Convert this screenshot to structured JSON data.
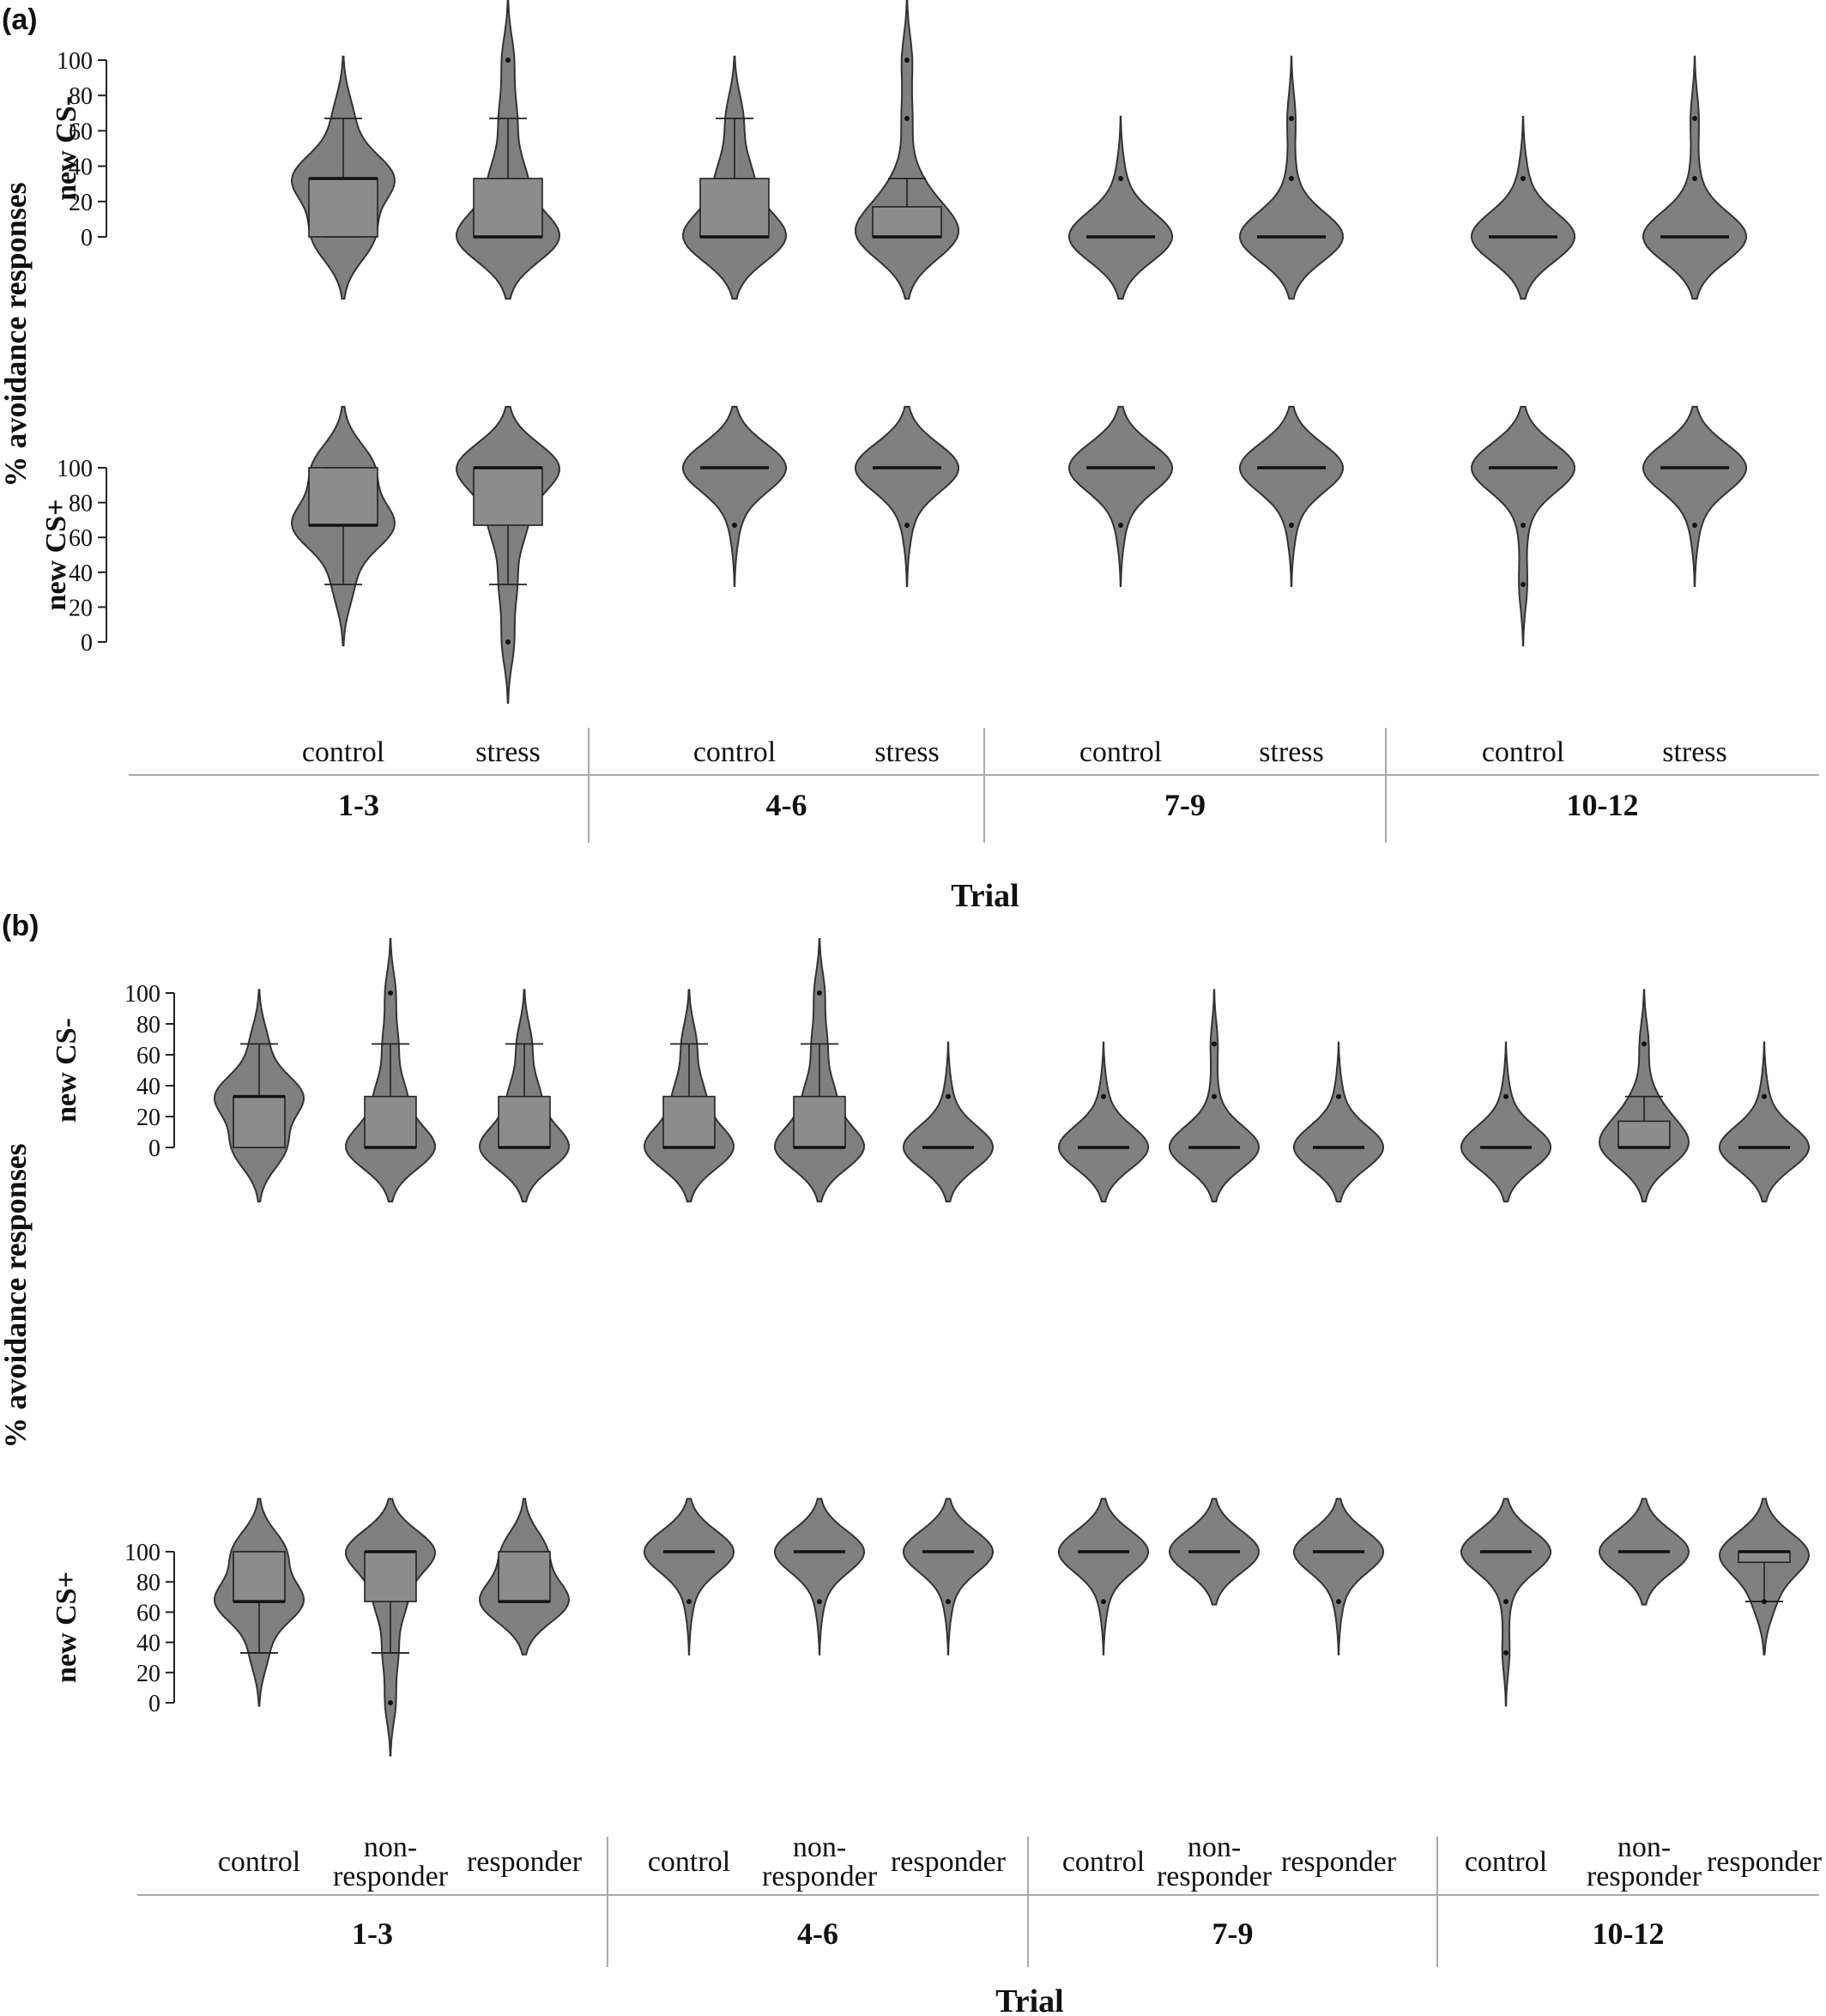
{
  "chart_data": [
    {
      "panel": "(a)",
      "type": "violin",
      "ylabel": "% avoidance responses",
      "xlabel": "Trial",
      "trial_blocks": [
        "1-3",
        "4-6",
        "7-9",
        "10-12"
      ],
      "groups": [
        "control",
        "stress"
      ],
      "yticks": [
        "100",
        "80",
        "60",
        "40",
        "20",
        "0"
      ],
      "ylim": [
        0,
        100
      ],
      "rows": [
        {
          "label": "new CS-",
          "cells": [
            {
              "block": "1-3",
              "group": "control",
              "min": 0,
              "q1": 0,
              "median": 33,
              "q3": 33,
              "max": 67,
              "points": []
            },
            {
              "block": "1-3",
              "group": "stress",
              "min": 0,
              "q1": 0,
              "median": 0,
              "q3": 33,
              "max": 67,
              "points": [
                100
              ]
            },
            {
              "block": "4-6",
              "group": "control",
              "min": 0,
              "q1": 0,
              "median": 0,
              "q3": 33,
              "max": 67,
              "points": []
            },
            {
              "block": "4-6",
              "group": "stress",
              "min": 0,
              "q1": 0,
              "median": 0,
              "q3": 17,
              "max": 33,
              "points": [
                67,
                100
              ]
            },
            {
              "block": "7-9",
              "group": "control",
              "min": 0,
              "q1": 0,
              "median": 0,
              "q3": 0,
              "max": 0,
              "points": [
                33
              ]
            },
            {
              "block": "7-9",
              "group": "stress",
              "min": 0,
              "q1": 0,
              "median": 0,
              "q3": 0,
              "max": 0,
              "points": [
                33,
                67
              ]
            },
            {
              "block": "10-12",
              "group": "control",
              "min": 0,
              "q1": 0,
              "median": 0,
              "q3": 0,
              "max": 0,
              "points": [
                33
              ]
            },
            {
              "block": "10-12",
              "group": "stress",
              "min": 0,
              "q1": 0,
              "median": 0,
              "q3": 0,
              "max": 0,
              "points": [
                33,
                67
              ]
            }
          ]
        },
        {
          "label": "new CS+",
          "cells": [
            {
              "block": "1-3",
              "group": "control",
              "min": 33,
              "q1": 67,
              "median": 67,
              "q3": 100,
              "max": 100,
              "points": []
            },
            {
              "block": "1-3",
              "group": "stress",
              "min": 33,
              "q1": 67,
              "median": 100,
              "q3": 100,
              "max": 100,
              "points": [
                0
              ]
            },
            {
              "block": "4-6",
              "group": "control",
              "min": 100,
              "q1": 100,
              "median": 100,
              "q3": 100,
              "max": 100,
              "points": [
                67
              ]
            },
            {
              "block": "4-6",
              "group": "stress",
              "min": 100,
              "q1": 100,
              "median": 100,
              "q3": 100,
              "max": 100,
              "points": [
                67
              ]
            },
            {
              "block": "7-9",
              "group": "control",
              "min": 100,
              "q1": 100,
              "median": 100,
              "q3": 100,
              "max": 100,
              "points": [
                67
              ]
            },
            {
              "block": "7-9",
              "group": "stress",
              "min": 100,
              "q1": 100,
              "median": 100,
              "q3": 100,
              "max": 100,
              "points": [
                67
              ]
            },
            {
              "block": "10-12",
              "group": "control",
              "min": 100,
              "q1": 100,
              "median": 100,
              "q3": 100,
              "max": 100,
              "points": [
                67,
                33
              ]
            },
            {
              "block": "10-12",
              "group": "stress",
              "min": 100,
              "q1": 100,
              "median": 100,
              "q3": 100,
              "max": 100,
              "points": [
                67
              ]
            }
          ]
        }
      ]
    },
    {
      "panel": "(b)",
      "type": "violin",
      "ylabel": "% avoidance responses",
      "xlabel": "Trial",
      "trial_blocks": [
        "1-3",
        "4-6",
        "7-9",
        "10-12"
      ],
      "groups": [
        "control",
        "non-\nresponder",
        "responder"
      ],
      "yticks": [
        "100",
        "80",
        "60",
        "40",
        "20",
        "0"
      ],
      "ylim": [
        0,
        100
      ],
      "rows": [
        {
          "label": "new CS-",
          "cells": [
            {
              "block": "1-3",
              "group": "control",
              "min": 0,
              "q1": 0,
              "median": 33,
              "q3": 33,
              "max": 67,
              "points": []
            },
            {
              "block": "1-3",
              "group": "non-responder",
              "min": 0,
              "q1": 0,
              "median": 0,
              "q3": 33,
              "max": 67,
              "points": [
                100
              ]
            },
            {
              "block": "1-3",
              "group": "responder",
              "min": 0,
              "q1": 0,
              "median": 0,
              "q3": 33,
              "max": 67,
              "points": []
            },
            {
              "block": "4-6",
              "group": "control",
              "min": 0,
              "q1": 0,
              "median": 0,
              "q3": 33,
              "max": 67,
              "points": []
            },
            {
              "block": "4-6",
              "group": "non-responder",
              "min": 0,
              "q1": 0,
              "median": 0,
              "q3": 33,
              "max": 67,
              "points": [
                100
              ]
            },
            {
              "block": "4-6",
              "group": "responder",
              "min": 0,
              "q1": 0,
              "median": 0,
              "q3": 0,
              "max": 0,
              "points": [
                33
              ]
            },
            {
              "block": "7-9",
              "group": "control",
              "min": 0,
              "q1": 0,
              "median": 0,
              "q3": 0,
              "max": 0,
              "points": [
                33
              ]
            },
            {
              "block": "7-9",
              "group": "non-responder",
              "min": 0,
              "q1": 0,
              "median": 0,
              "q3": 0,
              "max": 0,
              "points": [
                33,
                67
              ]
            },
            {
              "block": "7-9",
              "group": "responder",
              "min": 0,
              "q1": 0,
              "median": 0,
              "q3": 0,
              "max": 0,
              "points": [
                33
              ]
            },
            {
              "block": "10-12",
              "group": "control",
              "min": 0,
              "q1": 0,
              "median": 0,
              "q3": 0,
              "max": 0,
              "points": [
                33
              ]
            },
            {
              "block": "10-12",
              "group": "non-responder",
              "min": 0,
              "q1": 0,
              "median": 0,
              "q3": 17,
              "max": 33,
              "points": [
                67
              ]
            },
            {
              "block": "10-12",
              "group": "responder",
              "min": 0,
              "q1": 0,
              "median": 0,
              "q3": 0,
              "max": 0,
              "points": [
                33
              ]
            }
          ]
        },
        {
          "label": "new CS+",
          "cells": [
            {
              "block": "1-3",
              "group": "control",
              "min": 33,
              "q1": 67,
              "median": 67,
              "q3": 100,
              "max": 100,
              "points": []
            },
            {
              "block": "1-3",
              "group": "non-responder",
              "min": 33,
              "q1": 67,
              "median": 100,
              "q3": 100,
              "max": 100,
              "points": [
                0
              ]
            },
            {
              "block": "1-3",
              "group": "responder",
              "min": 67,
              "q1": 67,
              "median": 67,
              "q3": 100,
              "max": 100,
              "points": []
            },
            {
              "block": "4-6",
              "group": "control",
              "min": 100,
              "q1": 100,
              "median": 100,
              "q3": 100,
              "max": 100,
              "points": [
                67
              ]
            },
            {
              "block": "4-6",
              "group": "non-responder",
              "min": 100,
              "q1": 100,
              "median": 100,
              "q3": 100,
              "max": 100,
              "points": [
                67
              ]
            },
            {
              "block": "4-6",
              "group": "responder",
              "min": 100,
              "q1": 100,
              "median": 100,
              "q3": 100,
              "max": 100,
              "points": [
                67
              ]
            },
            {
              "block": "7-9",
              "group": "control",
              "min": 100,
              "q1": 100,
              "median": 100,
              "q3": 100,
              "max": 100,
              "points": [
                67
              ]
            },
            {
              "block": "7-9",
              "group": "non-responder",
              "min": 100,
              "q1": 100,
              "median": 100,
              "q3": 100,
              "max": 100,
              "points": []
            },
            {
              "block": "7-9",
              "group": "responder",
              "min": 100,
              "q1": 100,
              "median": 100,
              "q3": 100,
              "max": 100,
              "points": [
                67
              ]
            },
            {
              "block": "10-12",
              "group": "control",
              "min": 100,
              "q1": 100,
              "median": 100,
              "q3": 100,
              "max": 100,
              "points": [
                67,
                33
              ]
            },
            {
              "block": "10-12",
              "group": "non-responder",
              "min": 100,
              "q1": 100,
              "median": 100,
              "q3": 100,
              "max": 100,
              "points": []
            },
            {
              "block": "10-12",
              "group": "responder",
              "min": 67,
              "q1": 93,
              "median": 100,
              "q3": 100,
              "max": 100,
              "points": [
                67
              ]
            }
          ]
        }
      ]
    }
  ],
  "colors": {
    "violin_fill": "#808080",
    "stroke": "#333333",
    "box_fill": "#8c8c8c",
    "axis": "#222222",
    "separator": "#aaaaaa"
  }
}
